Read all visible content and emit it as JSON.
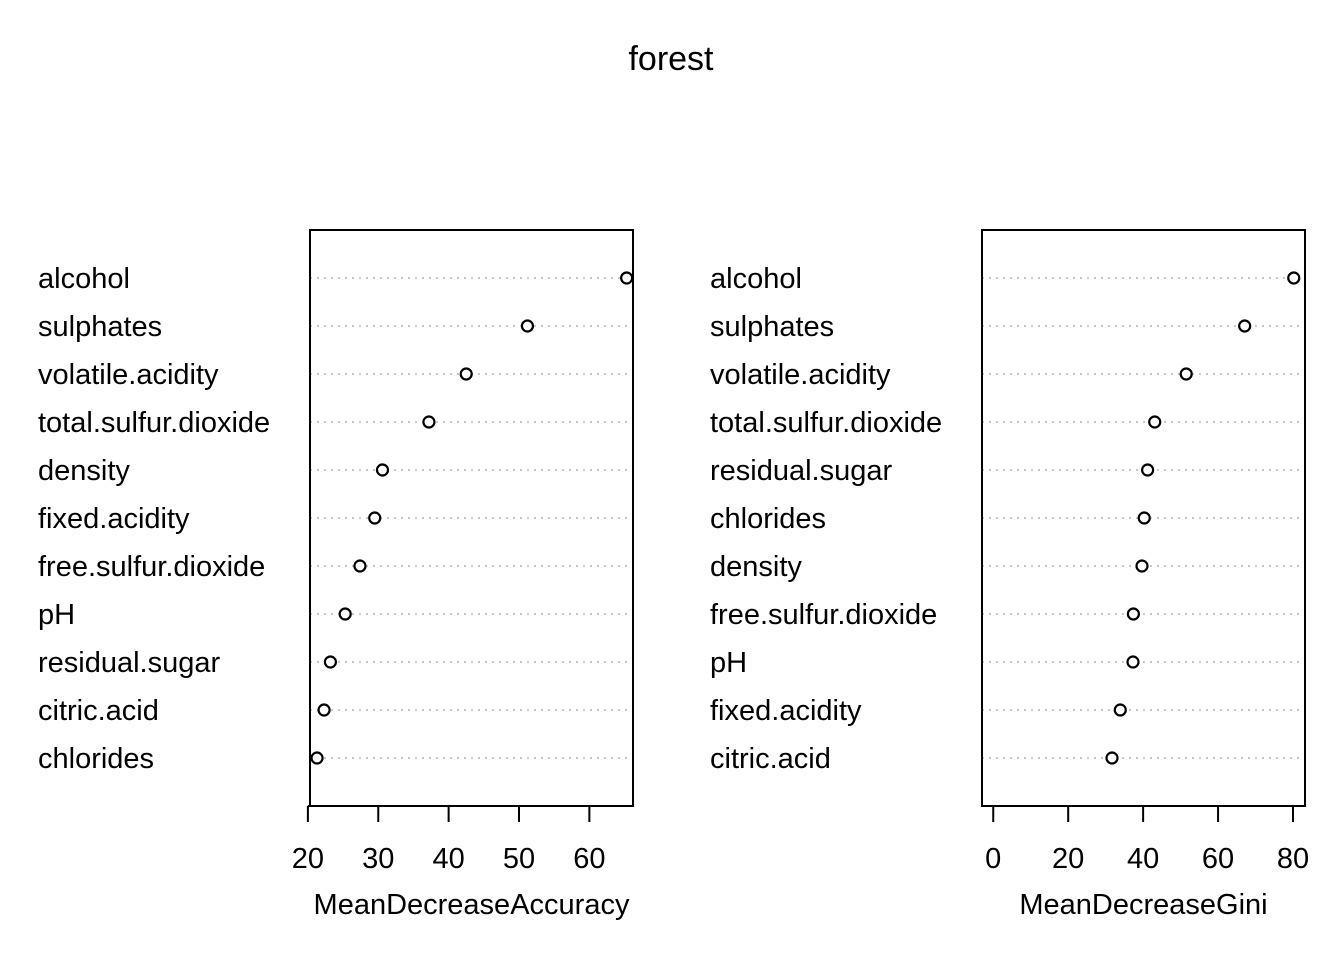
{
  "title": "forest",
  "chart_data": [
    {
      "type": "scatter",
      "subtype": "dotchart",
      "xlabel": "MeanDecreaseAccuracy",
      "categories": [
        "alcohol",
        "sulphates",
        "volatile.acidity",
        "total.sulfur.dioxide",
        "density",
        "fixed.acidity",
        "free.sulfur.dioxide",
        "pH",
        "residual.sugar",
        "citric.acid",
        "chlorides"
      ],
      "values": [
        65.3,
        51.2,
        42.5,
        37.2,
        30.6,
        29.5,
        27.4,
        25.3,
        23.2,
        22.3,
        21.3
      ],
      "xlim": [
        20.3,
        66.2
      ],
      "xticks": [
        20,
        30,
        40,
        50,
        60
      ],
      "xtick_labels": [
        "20",
        "30",
        "40",
        "50",
        "60"
      ],
      "grid": "dotted horizontal"
    },
    {
      "type": "scatter",
      "subtype": "dotchart",
      "xlabel": "MeanDecreaseGini",
      "categories": [
        "alcohol",
        "sulphates",
        "volatile.acidity",
        "total.sulfur.dioxide",
        "residual.sugar",
        "chlorides",
        "density",
        "free.sulfur.dioxide",
        "pH",
        "fixed.acidity",
        "citric.acid"
      ],
      "values": [
        80.2,
        67.1,
        51.5,
        43.1,
        41.2,
        40.3,
        39.7,
        37.4,
        37.3,
        33.9,
        31.7
      ],
      "xlim": [
        -3.0,
        83.2
      ],
      "xticks": [
        0,
        20,
        40,
        60,
        80
      ],
      "xtick_labels": [
        "0",
        "20",
        "40",
        "60",
        "80"
      ],
      "grid": "dotted horizontal"
    }
  ]
}
